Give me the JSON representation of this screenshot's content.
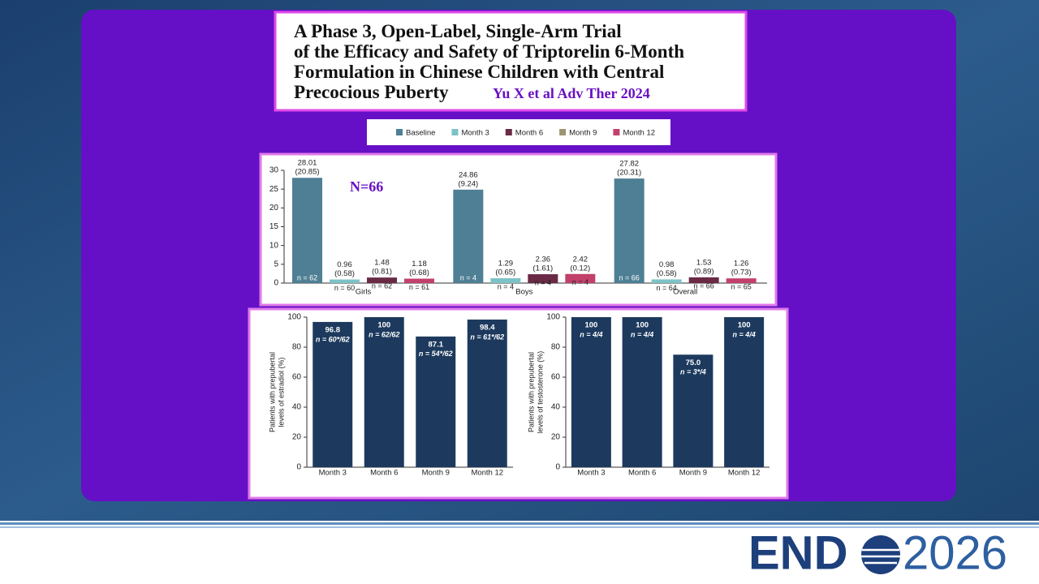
{
  "slide": {
    "title_lines": [
      "A Phase 3, Open-Label, Single-Arm Trial",
      "of the Efficacy and Safety of Triptorelin 6-Month",
      "Formulation in Chinese Children with Central",
      "Precocious Puberty"
    ],
    "citation": "Yu X et al Adv Ther 2024",
    "logo_left": "END",
    "logo_right": "2026"
  },
  "chart_data": [
    {
      "type": "bar",
      "annotation": "N=66",
      "categories": [
        "Girls",
        "Boys",
        "Overall"
      ],
      "series": [
        {
          "name": "Baseline",
          "color": "#4f7f94",
          "values": [
            28.01,
            24.86,
            27.82
          ],
          "sd_labels": [
            "(20.85)",
            "(9.24)",
            "(20.31)"
          ],
          "n_labels": [
            "n = 62",
            "n = 4",
            "n = 66"
          ]
        },
        {
          "name": "Month 3",
          "color": "#7cc3c7",
          "values": [
            0.96,
            1.29,
            0.98
          ],
          "sd_labels": [
            "(0.58)",
            "(0.65)",
            "(0.58)"
          ],
          "n_labels": [
            "n = 60",
            "n = 4",
            "n = 64"
          ]
        },
        {
          "name": "Month 6",
          "color": "#6a2a46",
          "values": [
            1.48,
            2.36,
            1.53
          ],
          "sd_labels": [
            "(0.81)",
            "(1.61)",
            "(0.89)"
          ],
          "n_labels": [
            "n = 62",
            "n = 4",
            "n = 66"
          ]
        },
        {
          "name": "Month 9",
          "color": "#9b9672",
          "values": [
            null,
            null,
            null
          ],
          "sd_labels": [
            null,
            null,
            null
          ],
          "n_labels": [
            null,
            null,
            null
          ]
        },
        {
          "name": "Month 12",
          "color": "#c2416b",
          "values": [
            1.18,
            2.42,
            1.26
          ],
          "sd_labels": [
            "(0.68)",
            "(0.12)",
            "(0.73)"
          ],
          "n_labels": [
            "n = 61",
            "n = 4",
            "n = 65"
          ]
        }
      ],
      "ylim": [
        0,
        30
      ],
      "yticks": [
        0,
        5,
        10,
        15,
        20,
        25,
        30
      ]
    },
    {
      "type": "bar",
      "categories": [
        "Month 3",
        "Month 6",
        "Month 9",
        "Month 12"
      ],
      "values": [
        96.8,
        100,
        87.1,
        98.4
      ],
      "n_labels": [
        "n = 60*/62",
        "n = 62/62",
        "n = 54*/62",
        "n = 61*/62"
      ],
      "color": "#1d3a5e",
      "ylabel": [
        "Patients with prepubertal",
        "levels of estradiol (%)"
      ],
      "ylim": [
        0,
        100
      ],
      "yticks": [
        0,
        20,
        40,
        60,
        80,
        100
      ]
    },
    {
      "type": "bar",
      "categories": [
        "Month 3",
        "Month 6",
        "Month 9",
        "Month 12"
      ],
      "values": [
        100,
        100,
        75.0,
        100
      ],
      "value_labels": [
        "100",
        "100",
        "75.0",
        "100"
      ],
      "n_labels": [
        "n = 4/4",
        "n = 4/4",
        "n = 3*/4",
        "n = 4/4"
      ],
      "color": "#1d3a5e",
      "ylabel": [
        "Patients with prepubertal",
        "levels of testosterone (%)"
      ],
      "ylim": [
        0,
        100
      ],
      "yticks": [
        0,
        20,
        40,
        60,
        80,
        100
      ]
    }
  ]
}
